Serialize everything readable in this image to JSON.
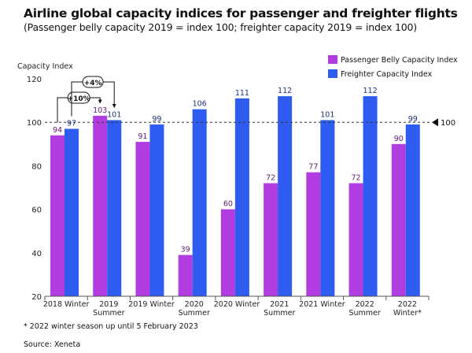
{
  "header": {
    "title": "Airline global capacity indices for passenger and freighter flights",
    "subtitle": "(Passenger belly capacity 2019 = index 100; freighter capacity 2019 = index 100)"
  },
  "footer": {
    "footnote": "* 2022 winter season up until 5 February 2023",
    "source": "Source: Xeneta"
  },
  "colors": {
    "passenger": "#b13ce0",
    "freighter": "#2f5cf0",
    "reference_line": "#333333",
    "axis": "#555555"
  },
  "chart_data": {
    "type": "bar",
    "ylabel": "Capacity Index",
    "xlabel": "",
    "ylim": [
      20,
      120
    ],
    "yticks": [
      20,
      40,
      60,
      80,
      100,
      120
    ],
    "categories": [
      [
        "2018 Winter"
      ],
      [
        "2019",
        "Summer"
      ],
      [
        "2019 Winter"
      ],
      [
        "2020",
        "Summer"
      ],
      [
        "2020 Winter"
      ],
      [
        "2021",
        "Summer"
      ],
      [
        "2021 Winter"
      ],
      [
        "2022",
        "Summer"
      ],
      [
        "2022",
        "Winter*"
      ]
    ],
    "series": [
      {
        "name": "Passenger Belly Capacity Index",
        "values": [
          94,
          103,
          91,
          39,
          60,
          72,
          77,
          72,
          90
        ]
      },
      {
        "name": "Freighter Capacity Index",
        "values": [
          97,
          101,
          99,
          106,
          111,
          112,
          101,
          112,
          99
        ]
      }
    ],
    "legend_position": "top-right",
    "reference_line": {
      "value": 100,
      "label": "100"
    },
    "annotations": [
      {
        "text": "+10%",
        "from": {
          "category": 0,
          "series": 0
        },
        "to": {
          "category": 1,
          "series": 0
        }
      },
      {
        "text": "+4%",
        "from": {
          "category": 0,
          "series": 1
        },
        "to": {
          "category": 1,
          "series": 1
        }
      }
    ]
  }
}
